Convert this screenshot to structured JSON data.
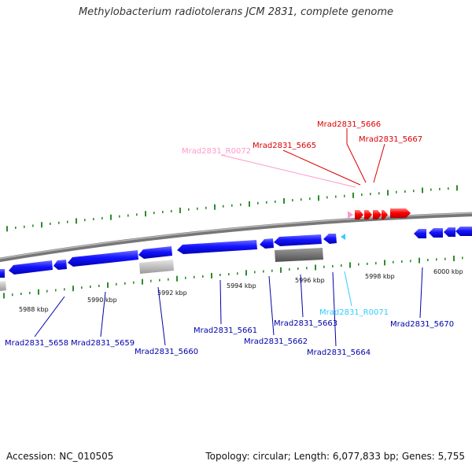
{
  "title": "Methylobacterium radiotolerans JCM 2831, complete genome",
  "footer": {
    "accession": "Accession: NC_010505",
    "summary": "Topology: circular; Length: 6,077,833 bp; Genes: 5,755"
  },
  "colors": {
    "cds_forward": "#ff0000",
    "cds_reverse": "#0000ff",
    "rna_forward": "#ff9acb",
    "rna_reverse": "#33ccff",
    "rrna_block": "#c0c0c0",
    "backbone": "#888888",
    "tick_mark": "#2e8b2e"
  },
  "scale_labels": [
    "5988 kbp",
    "5990 kbp",
    "5992 kbp",
    "5994 kbp",
    "5996 kbp",
    "5998 kbp",
    "6000 kbp"
  ],
  "gene_labels": [
    {
      "text": "Mrad2831_5666",
      "color": "#dd0000"
    },
    {
      "text": "Mrad2831_5667",
      "color": "#dd0000"
    },
    {
      "text": "Mrad2831_5665",
      "color": "#dd0000"
    },
    {
      "text": "Mrad2831_R0072",
      "color": "#ff99cc"
    },
    {
      "text": "Mrad2831_5658",
      "color": "#0000aa"
    },
    {
      "text": "Mrad2831_5659",
      "color": "#0000aa"
    },
    {
      "text": "Mrad2831_5660",
      "color": "#0000aa"
    },
    {
      "text": "Mrad2831_5661",
      "color": "#0000aa"
    },
    {
      "text": "Mrad2831_5662",
      "color": "#0000aa"
    },
    {
      "text": "Mrad2831_5663",
      "color": "#0000aa"
    },
    {
      "text": "Mrad2831_R0071",
      "color": "#33ccff"
    },
    {
      "text": "Mrad2831_5664",
      "color": "#0000aa"
    },
    {
      "text": "Mrad2831_5670",
      "color": "#0000aa"
    }
  ]
}
